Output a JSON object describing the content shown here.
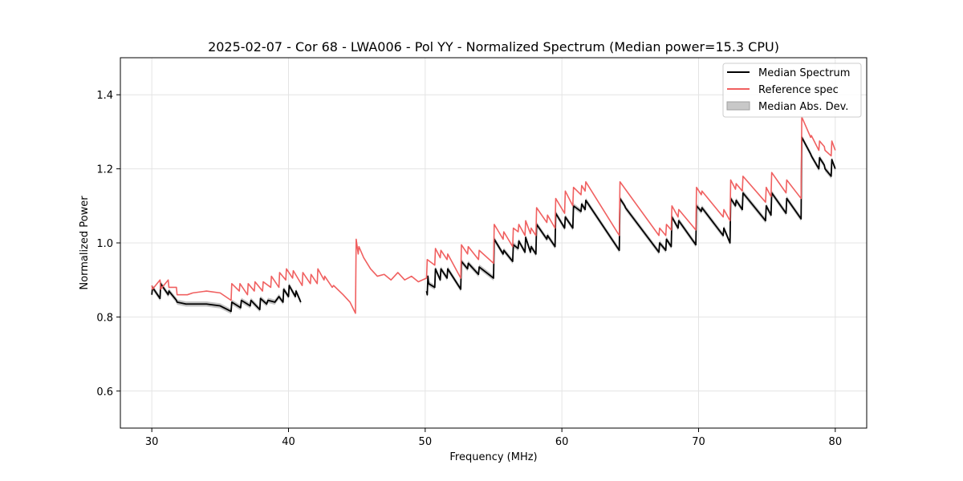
{
  "chart_data": {
    "type": "line",
    "title": "2025-02-07 - Cor 68 - LWA006 - Pol YY - Normalized Spectrum (Median power=15.3 CPU)",
    "xlabel": "Frequency (MHz)",
    "ylabel": "Normalized Power",
    "xlim": [
      27.7,
      82.3
    ],
    "ylim": [
      0.5,
      1.5
    ],
    "xticks": [
      30,
      40,
      50,
      60,
      70,
      80
    ],
    "yticks": [
      0.6,
      0.8,
      1.0,
      1.2,
      1.4
    ],
    "grid": true,
    "legend_position": "top-right",
    "colors": {
      "median": "#000000",
      "reference": "#f06060",
      "mad": "#b0b0b0"
    },
    "series": [
      {
        "name": "Median Spectrum",
        "x": [
          30.0,
          30.05,
          30.6,
          30.65,
          31.2,
          31.25,
          31.8,
          31.85,
          32.5,
          33.0,
          34.0,
          35.0,
          35.8,
          35.85,
          36.5,
          36.55,
          37.2,
          37.25,
          37.9,
          37.95,
          38.4,
          38.5,
          39.0,
          39.3,
          39.6,
          39.65,
          40.0,
          40.05,
          40.5,
          40.55,
          40.9
        ],
        "values": [
          0.86,
          0.88,
          0.85,
          0.89,
          0.86,
          0.87,
          0.845,
          0.84,
          0.835,
          0.835,
          0.835,
          0.83,
          0.815,
          0.84,
          0.825,
          0.845,
          0.83,
          0.845,
          0.82,
          0.85,
          0.835,
          0.845,
          0.84,
          0.855,
          0.84,
          0.875,
          0.855,
          0.885,
          0.855,
          0.87,
          0.84
        ]
      },
      {
        "name": "Median Spectrum",
        "x": [
          50.1,
          50.15,
          50.2,
          50.25,
          50.7,
          50.75,
          51.1,
          51.15,
          51.6,
          51.65,
          52.6,
          52.65,
          53.1,
          53.15,
          53.9,
          53.95,
          55.0,
          55.05,
          55.7,
          55.75,
          56.4,
          56.45,
          56.8,
          56.85,
          57.3,
          57.35,
          57.7,
          57.75,
          58.1,
          58.15,
          58.9,
          58.95,
          59.5,
          59.55,
          60.2,
          60.25,
          60.8,
          60.85,
          61.4,
          61.45,
          61.7,
          61.75,
          64.2,
          64.25,
          64.6,
          64.65,
          67.1,
          67.15,
          67.6,
          67.65,
          68.0,
          68.05,
          68.5,
          68.55,
          69.8,
          69.85,
          70.2,
          70.25,
          71.8,
          71.85,
          72.3,
          72.35,
          72.7,
          72.75,
          73.2,
          73.25,
          74.9,
          74.95,
          75.3,
          75.35,
          76.4,
          76.45,
          77.5,
          77.55,
          78.2,
          78.25,
          78.8,
          78.85,
          79.2,
          79.25,
          79.7,
          79.75,
          80.0
        ],
        "values": [
          0.87,
          0.86,
          0.91,
          0.89,
          0.88,
          0.93,
          0.9,
          0.93,
          0.905,
          0.93,
          0.875,
          0.95,
          0.93,
          0.945,
          0.915,
          0.935,
          0.905,
          1.01,
          0.97,
          0.98,
          0.95,
          0.995,
          0.985,
          1.005,
          0.975,
          1.015,
          0.975,
          0.99,
          0.97,
          1.05,
          1.01,
          1.02,
          0.99,
          1.08,
          1.04,
          1.07,
          1.04,
          1.1,
          1.085,
          1.105,
          1.09,
          1.115,
          0.98,
          1.12,
          1.1,
          1.095,
          0.975,
          1.0,
          0.98,
          1.01,
          0.99,
          1.07,
          1.04,
          1.06,
          0.995,
          1.1,
          1.085,
          1.095,
          1.02,
          1.04,
          1.0,
          1.12,
          1.1,
          1.115,
          1.09,
          1.135,
          1.06,
          1.1,
          1.075,
          1.135,
          1.08,
          1.12,
          1.065,
          1.285,
          1.24,
          1.235,
          1.2,
          1.23,
          1.21,
          1.2,
          1.18,
          1.225,
          1.2
        ]
      },
      {
        "name": "Reference spec",
        "x": [
          30.0,
          30.05,
          30.6,
          30.65,
          31.2,
          31.25,
          31.8,
          31.85,
          32.6,
          33.0,
          34.0,
          35.0,
          35.8,
          35.85,
          36.4,
          36.45,
          37.0,
          37.05,
          37.5,
          37.55,
          38.1,
          38.15,
          38.7,
          38.75,
          39.3,
          39.35,
          39.8,
          39.85,
          40.3,
          40.35,
          41.0,
          41.05,
          41.6,
          41.65,
          42.1,
          42.15,
          42.6,
          42.65,
          43.2,
          43.3,
          44.0,
          44.5,
          44.9,
          44.95,
          45.1,
          45.15,
          45.5,
          46.0,
          46.5,
          47.0,
          47.5,
          48.0,
          48.5,
          49.0,
          49.5,
          50.1,
          50.15,
          50.7,
          50.75,
          51.1,
          51.15,
          51.6,
          51.65,
          52.6,
          52.65,
          53.1,
          53.15,
          53.9,
          53.95,
          55.0,
          55.05,
          55.7,
          55.75,
          56.4,
          56.45,
          56.8,
          56.85,
          57.3,
          57.35,
          57.7,
          57.75,
          58.1,
          58.15,
          58.9,
          58.95,
          59.5,
          59.55,
          60.2,
          60.25,
          60.8,
          60.85,
          61.4,
          61.45,
          61.7,
          61.75,
          64.2,
          64.25,
          67.1,
          67.15,
          67.6,
          67.65,
          68.0,
          68.05,
          68.5,
          68.55,
          69.8,
          69.85,
          70.2,
          70.25,
          71.8,
          71.85,
          72.3,
          72.35,
          72.7,
          72.75,
          73.2,
          73.25,
          74.9,
          74.95,
          75.3,
          75.35,
          76.4,
          76.45,
          77.5,
          77.55,
          78.2,
          78.25,
          78.8,
          78.85,
          79.2,
          79.25,
          79.7,
          79.75,
          80.0
        ],
        "values": [
          0.885,
          0.875,
          0.9,
          0.875,
          0.9,
          0.88,
          0.88,
          0.86,
          0.86,
          0.865,
          0.87,
          0.865,
          0.845,
          0.89,
          0.87,
          0.89,
          0.86,
          0.89,
          0.87,
          0.895,
          0.87,
          0.895,
          0.88,
          0.91,
          0.88,
          0.92,
          0.9,
          0.93,
          0.905,
          0.925,
          0.885,
          0.92,
          0.89,
          0.915,
          0.89,
          0.93,
          0.9,
          0.91,
          0.88,
          0.885,
          0.86,
          0.84,
          0.81,
          1.01,
          0.97,
          0.99,
          0.96,
          0.93,
          0.91,
          0.915,
          0.9,
          0.92,
          0.9,
          0.91,
          0.895,
          0.905,
          0.955,
          0.94,
          0.985,
          0.96,
          0.98,
          0.955,
          0.97,
          0.905,
          0.995,
          0.97,
          0.99,
          0.955,
          0.98,
          0.945,
          1.05,
          1.01,
          1.03,
          0.99,
          1.04,
          1.03,
          1.05,
          1.02,
          1.06,
          1.025,
          1.04,
          1.02,
          1.095,
          1.055,
          1.075,
          1.04,
          1.12,
          1.08,
          1.14,
          1.1,
          1.15,
          1.13,
          1.155,
          1.14,
          1.165,
          1.02,
          1.165,
          1.02,
          1.04,
          1.02,
          1.05,
          1.035,
          1.1,
          1.07,
          1.09,
          1.035,
          1.15,
          1.13,
          1.14,
          1.07,
          1.09,
          1.06,
          1.17,
          1.145,
          1.16,
          1.14,
          1.18,
          1.11,
          1.15,
          1.125,
          1.19,
          1.135,
          1.17,
          1.12,
          1.34,
          1.285,
          1.29,
          1.25,
          1.275,
          1.26,
          1.25,
          1.235,
          1.275,
          1.25
        ]
      }
    ],
    "legend": [
      "Median Spectrum",
      "Reference spec",
      "Median Abs. Dev."
    ]
  }
}
